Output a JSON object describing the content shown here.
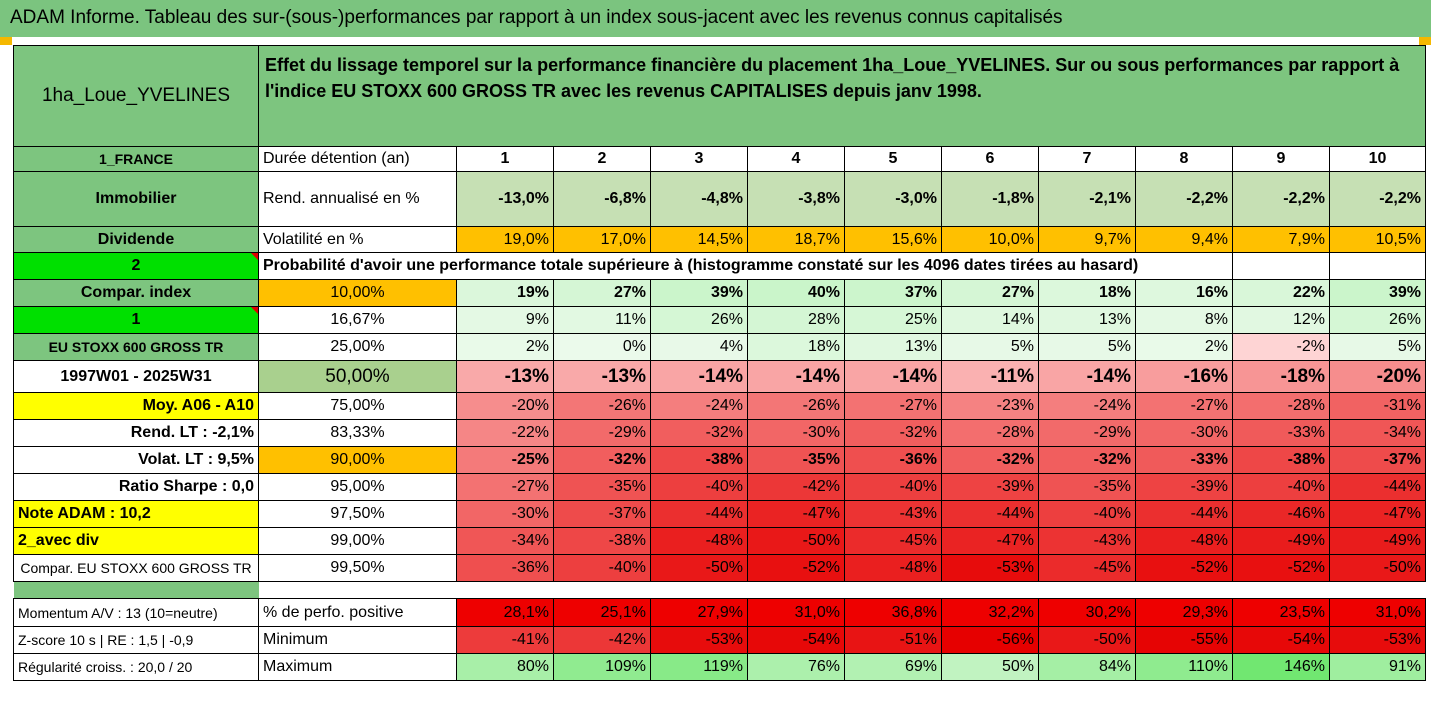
{
  "title": "ADAM Informe. Tableau des sur-(sous-)performances par rapport à un index sous-jacent avec les revenus connus capitalisés",
  "colors": {
    "header_green": "#7dc57f",
    "bright_green": "#00e000",
    "yellow": "#ffff00",
    "orange": "#ffc000"
  },
  "fund_name": "1ha_Loue_YVELINES",
  "description": "Effet du lissage temporel sur la performance financière du placement 1ha_Loue_YVELINES. Sur ou sous performances par rapport à l'indice EU STOXX 600 GROSS TR avec les revenus CAPITALISES depuis janv 1998.",
  "years": [
    "1",
    "2",
    "3",
    "4",
    "5",
    "6",
    "7",
    "8",
    "9",
    "10"
  ],
  "left": {
    "country": "1_FRANCE",
    "category": "Immobilier",
    "dividend": "Dividende",
    "code2": "2",
    "compar_index": "Compar. index",
    "code1": "1",
    "index_name": "EU STOXX 600 GROSS TR",
    "period": "1997W01 - 2025W31",
    "avg": "Moy. A06 - A10",
    "rend_lt": "Rend. LT :   -2,1%",
    "volat_lt": "Volat. LT :   9,5%",
    "sharpe": "Ratio Sharpe :   0,0",
    "note": "Note ADAM : 10,2",
    "avec_div": "2_avec div",
    "compar_full": "Compar. EU STOXX 600 GROSS TR",
    "momentum": "Momentum A/V : 13 (10=neutre)",
    "zscore": "Z-score 10 s  | RE : 1,5  | -0,9",
    "regularite": "Régularité croiss. : 20,0 / 20"
  },
  "row_labels": {
    "duree": "Durée détention (an)",
    "rend": "Rend. annualisé en %",
    "vol": "Volatilité en %",
    "proba": "Probabilité d'avoir une performance totale supérieure à (histogramme constaté sur les 4096 dates tirées au hasard)",
    "perfo_pos": "% de perfo. positive",
    "minimum": "Minimum",
    "maximum": "Maximum"
  },
  "rend": [
    "-13,0%",
    "-6,8%",
    "-4,8%",
    "-3,8%",
    "-3,0%",
    "-1,8%",
    "-2,1%",
    "-2,2%",
    "-2,2%",
    "-2,2%"
  ],
  "vol": [
    "19,0%",
    "17,0%",
    "14,5%",
    "18,7%",
    "15,6%",
    "10,0%",
    "9,7%",
    "9,4%",
    "7,9%",
    "10,5%"
  ],
  "quantiles": [
    {
      "p": "10,00%",
      "values": [
        "19%",
        "27%",
        "39%",
        "40%",
        "37%",
        "27%",
        "18%",
        "16%",
        "22%",
        "39%"
      ]
    },
    {
      "p": "16,67%",
      "values": [
        "9%",
        "11%",
        "26%",
        "28%",
        "25%",
        "14%",
        "13%",
        "8%",
        "12%",
        "26%"
      ]
    },
    {
      "p": "25,00%",
      "values": [
        "2%",
        "0%",
        "4%",
        "18%",
        "13%",
        "5%",
        "5%",
        "2%",
        "-2%",
        "5%"
      ]
    },
    {
      "p": "50,00%",
      "values": [
        "-13%",
        "-13%",
        "-14%",
        "-14%",
        "-14%",
        "-11%",
        "-14%",
        "-16%",
        "-18%",
        "-20%"
      ]
    },
    {
      "p": "75,00%",
      "values": [
        "-20%",
        "-26%",
        "-24%",
        "-26%",
        "-27%",
        "-23%",
        "-24%",
        "-27%",
        "-28%",
        "-31%"
      ]
    },
    {
      "p": "83,33%",
      "values": [
        "-22%",
        "-29%",
        "-32%",
        "-30%",
        "-32%",
        "-28%",
        "-29%",
        "-30%",
        "-33%",
        "-34%"
      ]
    },
    {
      "p": "90,00%",
      "values": [
        "-25%",
        "-32%",
        "-38%",
        "-35%",
        "-36%",
        "-32%",
        "-32%",
        "-33%",
        "-38%",
        "-37%"
      ]
    },
    {
      "p": "95,00%",
      "values": [
        "-27%",
        "-35%",
        "-40%",
        "-42%",
        "-40%",
        "-39%",
        "-35%",
        "-39%",
        "-40%",
        "-44%"
      ]
    },
    {
      "p": "97,50%",
      "values": [
        "-30%",
        "-37%",
        "-44%",
        "-47%",
        "-43%",
        "-44%",
        "-40%",
        "-44%",
        "-46%",
        "-47%"
      ]
    },
    {
      "p": "99,00%",
      "values": [
        "-34%",
        "-38%",
        "-48%",
        "-50%",
        "-45%",
        "-47%",
        "-43%",
        "-48%",
        "-49%",
        "-49%"
      ]
    },
    {
      "p": "99,50%",
      "values": [
        "-36%",
        "-40%",
        "-50%",
        "-52%",
        "-48%",
        "-53%",
        "-45%",
        "-52%",
        "-52%",
        "-50%"
      ]
    }
  ],
  "perfo_pos": [
    "28,1%",
    "25,1%",
    "27,9%",
    "31,0%",
    "36,8%",
    "32,2%",
    "30,2%",
    "29,3%",
    "23,5%",
    "31,0%"
  ],
  "minimum": [
    "-41%",
    "-42%",
    "-53%",
    "-54%",
    "-51%",
    "-56%",
    "-50%",
    "-55%",
    "-54%",
    "-53%"
  ],
  "maximum": [
    "80%",
    "109%",
    "119%",
    "76%",
    "69%",
    "50%",
    "84%",
    "110%",
    "146%",
    "91%"
  ]
}
